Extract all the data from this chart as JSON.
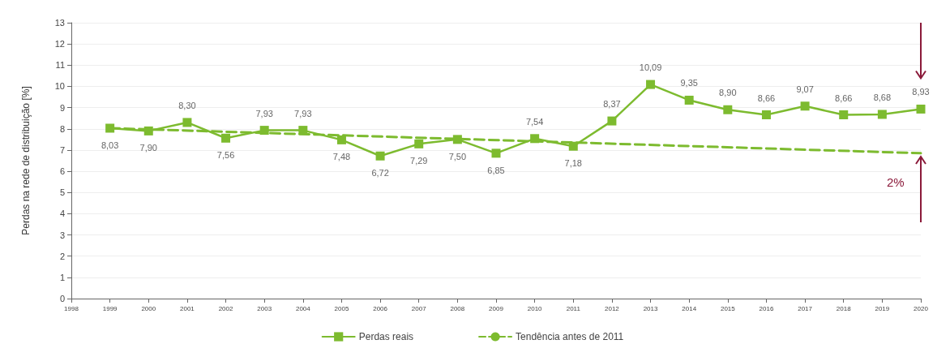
{
  "chart_data": {
    "type": "line",
    "ylabel": "Perdas na rede de distribuição [%]",
    "x": [
      1999,
      2000,
      2001,
      2002,
      2003,
      2004,
      2005,
      2006,
      2007,
      2008,
      2009,
      2010,
      2011,
      2012,
      2013,
      2014,
      2015,
      2016,
      2017,
      2018,
      2019,
      2020
    ],
    "series": [
      {
        "name": "Perdas reais",
        "color": "#7dbb2f",
        "marker": "square",
        "line_style": "solid",
        "values": [
          8.03,
          7.9,
          8.3,
          7.56,
          7.93,
          7.93,
          7.48,
          6.72,
          7.29,
          7.5,
          6.85,
          7.54,
          7.18,
          8.37,
          10.09,
          9.35,
          8.9,
          8.66,
          9.07,
          8.66,
          8.68,
          8.93
        ],
        "value_labels": [
          "8,03",
          "7,90",
          "8,30",
          "7,56",
          "7,93",
          "7,93",
          "7,48",
          "6,72",
          "7,29",
          "7,50",
          "6,85",
          "7,54",
          "7,18",
          "8,37",
          "10,09",
          "9,35",
          "8,90",
          "8,66",
          "9,07",
          "8,66",
          "8,68",
          "8,93"
        ]
      },
      {
        "name": "Tendência antes de 2011",
        "color": "#7dbb2f",
        "marker": "none",
        "line_style": "dashed",
        "x": [
          1999,
          2020
        ],
        "values": [
          8.03,
          6.85
        ]
      }
    ],
    "xlim": [
      1998,
      2020
    ],
    "xticks": [
      1998,
      1999,
      2000,
      2001,
      2002,
      2003,
      2004,
      2005,
      2006,
      2007,
      2008,
      2009,
      2010,
      2011,
      2012,
      2013,
      2014,
      2015,
      2016,
      2017,
      2018,
      2019,
      2020
    ],
    "ylim": [
      0,
      13
    ],
    "yticks": [
      0,
      1,
      2,
      3,
      4,
      5,
      6,
      7,
      8,
      9,
      10,
      11,
      12,
      13
    ],
    "grid": "y",
    "legend": "bottom",
    "annotations": [
      "2%"
    ]
  }
}
